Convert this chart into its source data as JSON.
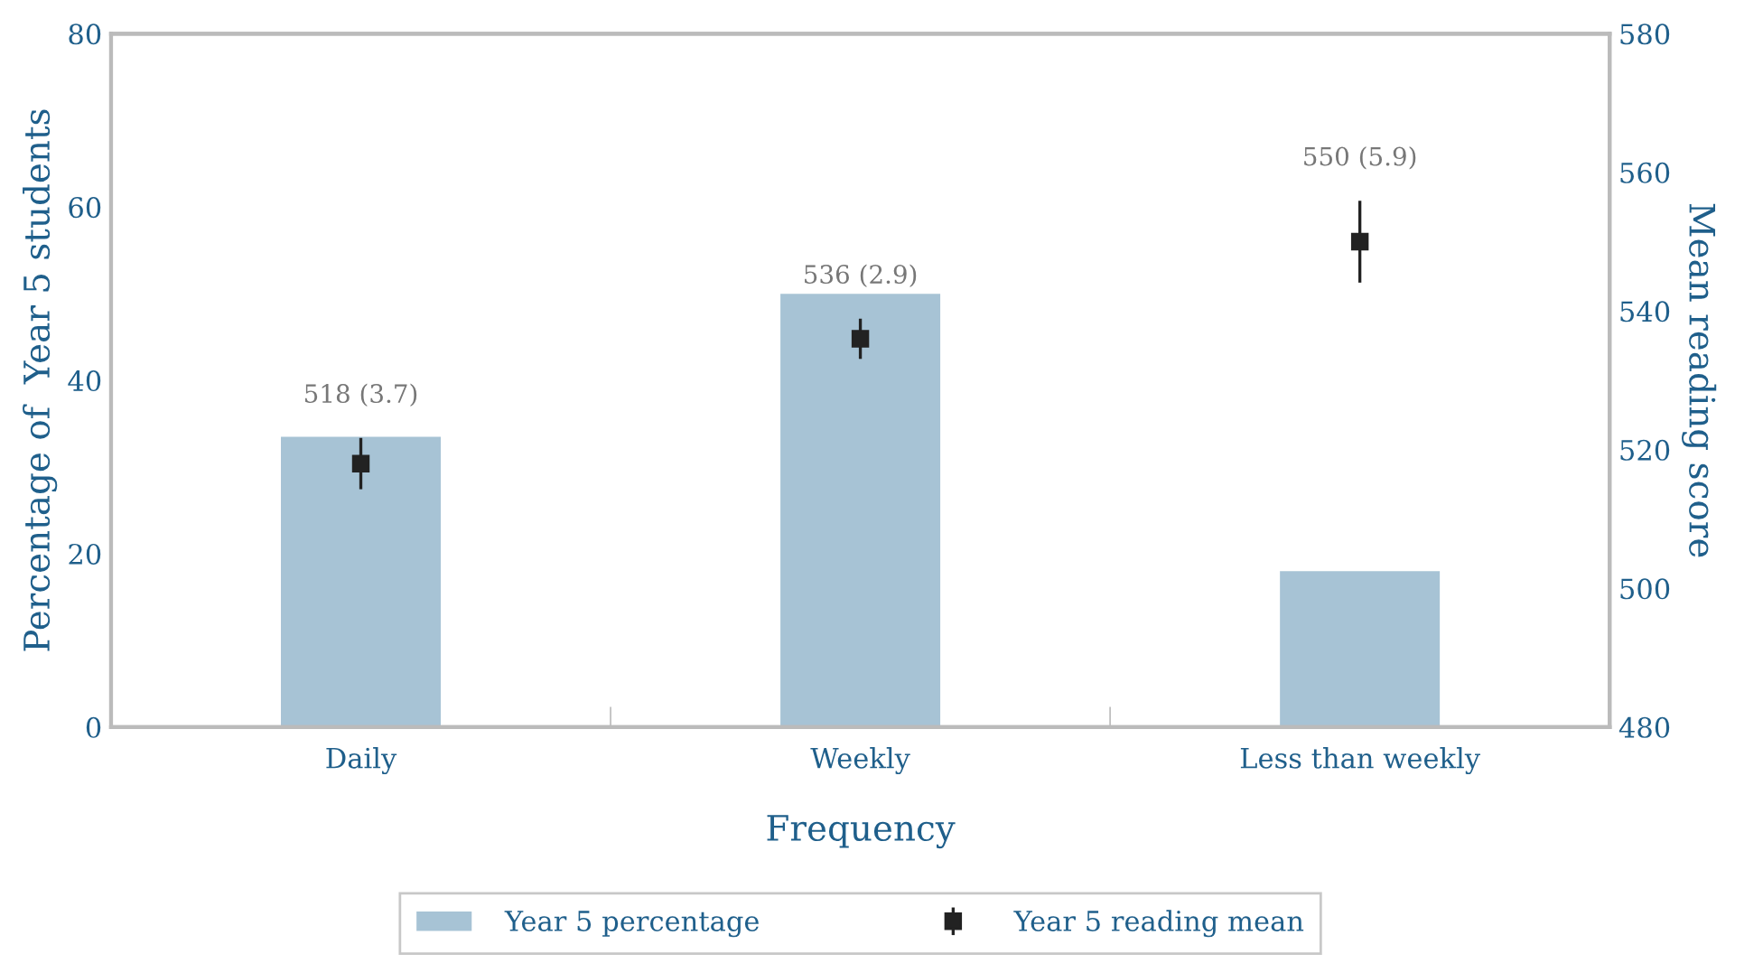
{
  "chart_data": {
    "type": "bar",
    "xlabel": "Frequency",
    "ylabel": "Percentage of  Year 5 students",
    "y2label": "Mean reading score",
    "categories": [
      "Daily",
      "Weekly",
      "Less than weekly"
    ],
    "series": [
      {
        "name": "Year 5 percentage",
        "color": "#a7c3d5",
        "values": [
          33.5,
          50,
          18
        ]
      },
      {
        "name": "Year 5 reading mean",
        "type": "scatter",
        "axis": "y2",
        "color": "#222222",
        "marker": "square",
        "values": [
          518,
          536,
          550
        ],
        "errors": [
          3.7,
          2.9,
          5.9
        ],
        "value_labels": [
          "518 (3.7)",
          "536 (2.9)",
          "550 (5.9)"
        ]
      }
    ],
    "ylim": [
      0,
      80
    ],
    "yticks": [
      0,
      20,
      40,
      60,
      80
    ],
    "y2lim": [
      480,
      580
    ],
    "y2ticks": [
      480,
      500,
      520,
      540,
      560,
      580
    ],
    "grid": false,
    "legend": "bottom"
  }
}
